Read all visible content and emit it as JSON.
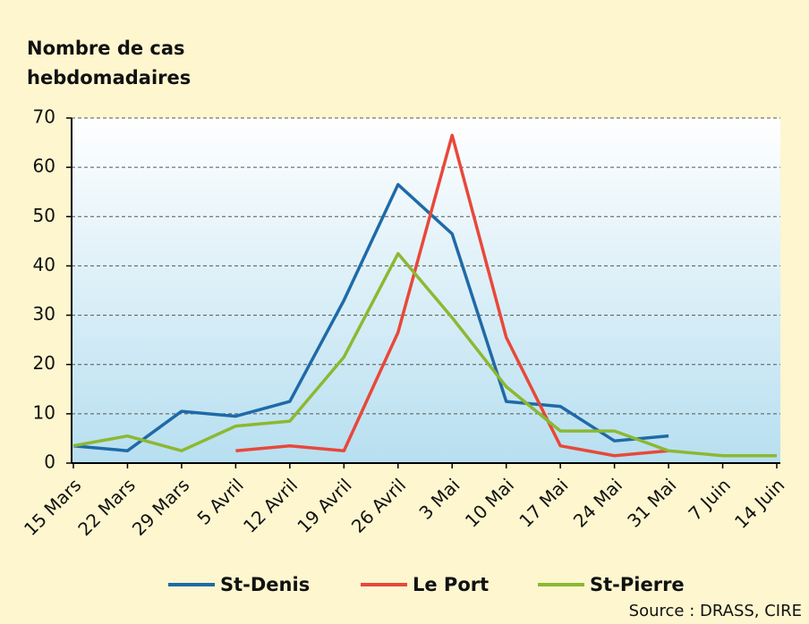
{
  "chart_data": {
    "type": "line",
    "ylabel": [
      "Nombre de cas",
      "hebdomadaires"
    ],
    "source": "Source : DRASS, CIRE",
    "categories": [
      "15 Mars",
      "22 Mars",
      "29 Mars",
      "5 Avril",
      "12 Avril",
      "19 Avril",
      "26 Avril",
      "3 Mai",
      "10 Mai",
      "17 Mai",
      "24 Mai",
      "31 Mai",
      "7 Juin",
      "14 Juin"
    ],
    "series": [
      {
        "name": "St-Denis",
        "color": "#1f6aa8",
        "values": [
          3.5,
          2.5,
          10.5,
          9.5,
          12.5,
          33,
          56.5,
          46.5,
          12.5,
          11.5,
          4.5,
          5.5,
          null,
          null
        ]
      },
      {
        "name": "Le Port",
        "color": "#e8483a",
        "values": [
          null,
          null,
          null,
          2.5,
          3.5,
          2.5,
          26.5,
          66.5,
          25.5,
          3.5,
          1.5,
          2.5,
          null,
          null
        ]
      },
      {
        "name": "St-Pierre",
        "color": "#8cb832",
        "values": [
          3.5,
          5.5,
          2.5,
          7.5,
          8.5,
          21.5,
          42.5,
          29.5,
          15.5,
          6.5,
          6.5,
          2.5,
          1.5,
          1.5
        ]
      }
    ],
    "ylim": [
      0,
      70
    ],
    "yticks": [
      0,
      10,
      20,
      30,
      40,
      50,
      60,
      70
    ],
    "grid": true,
    "legend": "bottom"
  }
}
